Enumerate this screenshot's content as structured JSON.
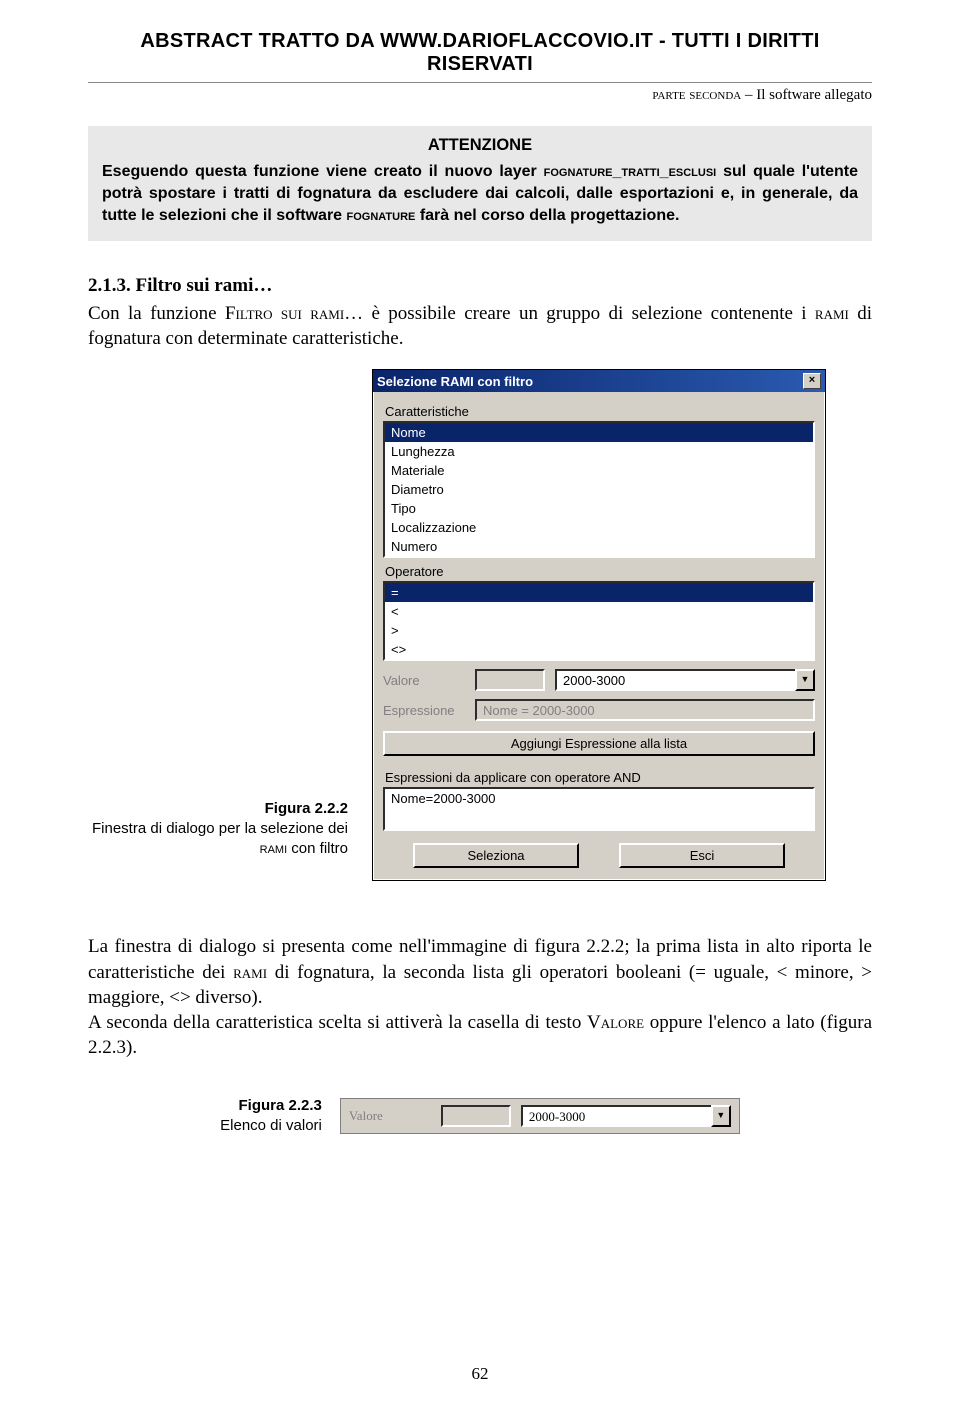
{
  "header": {
    "abstract_line": "ABSTRACT TRATTO DA WWW.DARIOFLACCOVIO.IT - TUTTI I DIRITTI RISERVATI",
    "section_label_sc": "parte seconda",
    "section_label_rest": " – Il software allegato"
  },
  "attention": {
    "title": "ATTENZIONE",
    "body_parts": [
      "Eseguendo questa funzione viene creato il nuovo layer ",
      "fognature_tratti_esclusi",
      " sul quale l'utente potrà spostare i tratti di fognatura da escludere dai calcoli, dalle esportazioni e, in generale, da tutte le selezioni che il software ",
      "fognature",
      " farà nel corso della progettazione."
    ]
  },
  "subsection": {
    "number": "2.1.3. Filtro sui rami…",
    "body_parts": [
      "Con la funzione ",
      "Filtro sui rami",
      "… è possibile creare un gruppo di selezione contenente i ",
      "rami",
      " di fognatura con determinate caratteristiche."
    ]
  },
  "dialog": {
    "title": "Selezione RAMI con filtro",
    "labels": {
      "caratteristiche": "Caratteristiche",
      "operatore": "Operatore",
      "valore": "Valore",
      "espressione": "Espressione",
      "espr_and": "Espressioni da applicare con operatore AND"
    },
    "caratteristiche_options": [
      "Nome",
      "Lunghezza",
      "Materiale",
      "Diametro",
      "Tipo",
      "Localizzazione",
      "Numero"
    ],
    "caratteristiche_selected": "Nome",
    "operatore_options": [
      "=",
      "<",
      ">",
      "<>"
    ],
    "operatore_selected": "=",
    "valore_combo": "2000-3000",
    "espressione_value": "Nome = 2000-3000",
    "btn_aggiungi": "Aggiungi Espressione alla lista",
    "and_list_value": "Nome=2000-3000",
    "btn_seleziona": "Seleziona",
    "btn_esci": "Esci"
  },
  "caption222": {
    "num": "Figura 2.2.2",
    "text_parts": [
      "Finestra di dialogo per la selezione dei ",
      "rami",
      " con filtro"
    ]
  },
  "para2": {
    "text_parts": [
      "La finestra di dialogo si presenta come nell'immagine di figura 2.2.2; la prima lista in alto riporta le caratteristiche dei ",
      "rami",
      " di fognatura, la seconda lista gli operatori booleani (= uguale, < minore, > maggiore, <> diverso).\nA seconda della caratteristica scelta si attiverà la casella di testo ",
      "Valore",
      " oppure l'elenco a lato (figura 2.2.3)."
    ]
  },
  "caption223": {
    "num": "Figura 2.2.3",
    "text": "Elenco di valori"
  },
  "minibar": {
    "label": "Valore",
    "combo": "2000-3000"
  },
  "pagenum": "62"
}
